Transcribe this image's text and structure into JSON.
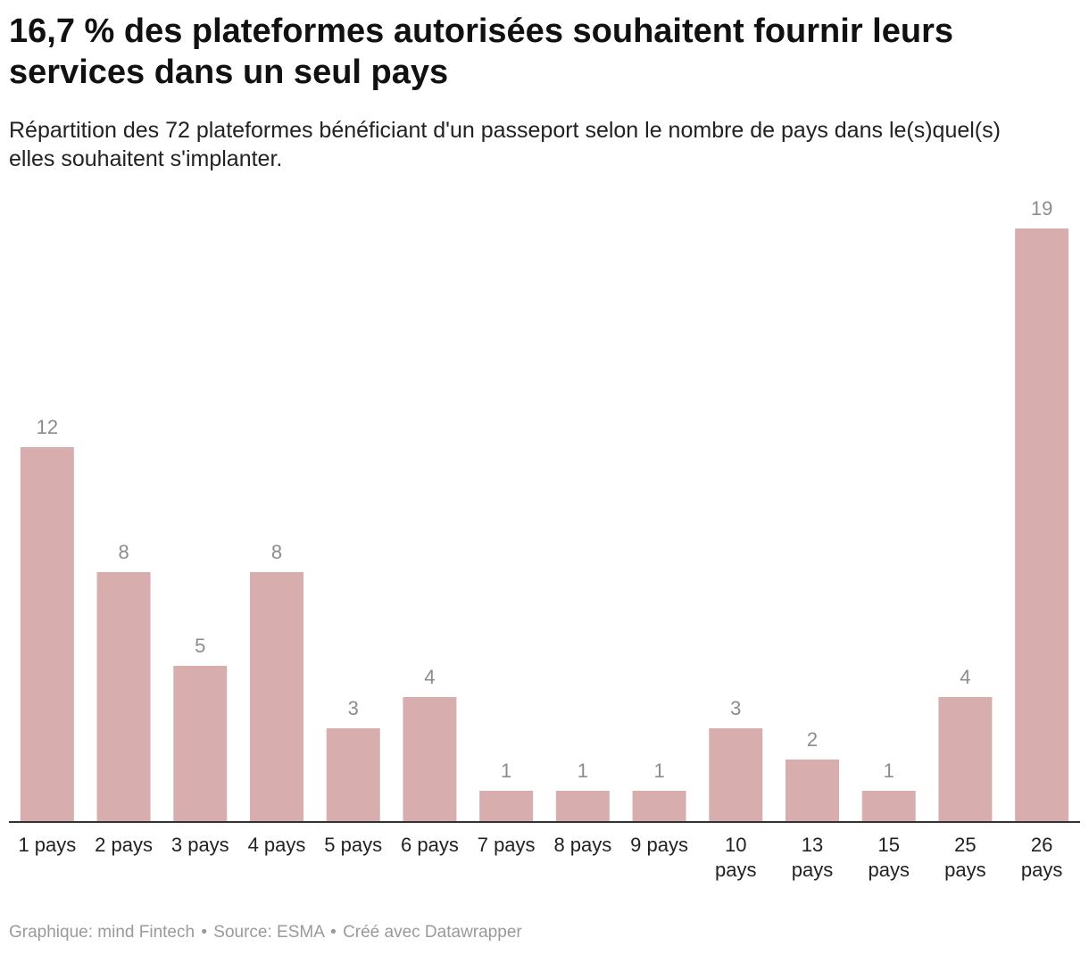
{
  "header": {
    "title": "16,7 % des plateformes autorisées souhaitent fournir leurs services dans un seul pays",
    "subtitle": "Répartition des 72 plateformes bénéficiant d'un passeport selon le nombre de pays dans le(s)quel(s) elles souhaitent s'implanter."
  },
  "footer": {
    "credit": "Graphique: mind Fintech",
    "source": "Source: ESMA",
    "tool": "Créé avec Datawrapper",
    "separator": "•"
  },
  "colors": {
    "bar": "#d7adad",
    "value_label": "#8c8c8c",
    "axis": "#333333",
    "tick_label": "#222222"
  },
  "chart_data": {
    "type": "bar",
    "title": "16,7 % des plateformes autorisées souhaitent fournir leurs services dans un seul pays",
    "subtitle": "Répartition des 72 plateformes bénéficiant d'un passeport selon le nombre de pays dans le(s)quel(s) elles souhaitent s'implanter.",
    "xlabel": "",
    "ylabel": "",
    "ylim": [
      0,
      19
    ],
    "grid": false,
    "categories": [
      [
        "1 pays"
      ],
      [
        "2 pays"
      ],
      [
        "3 pays"
      ],
      [
        "4 pays"
      ],
      [
        "5 pays"
      ],
      [
        "6 pays"
      ],
      [
        "7 pays"
      ],
      [
        "8 pays"
      ],
      [
        "9 pays"
      ],
      [
        "10",
        "pays"
      ],
      [
        "13",
        "pays"
      ],
      [
        "15",
        "pays"
      ],
      [
        "25",
        "pays"
      ],
      [
        "26",
        "pays"
      ]
    ],
    "values": [
      12,
      8,
      5,
      8,
      3,
      4,
      1,
      1,
      1,
      3,
      2,
      1,
      4,
      19
    ]
  }
}
